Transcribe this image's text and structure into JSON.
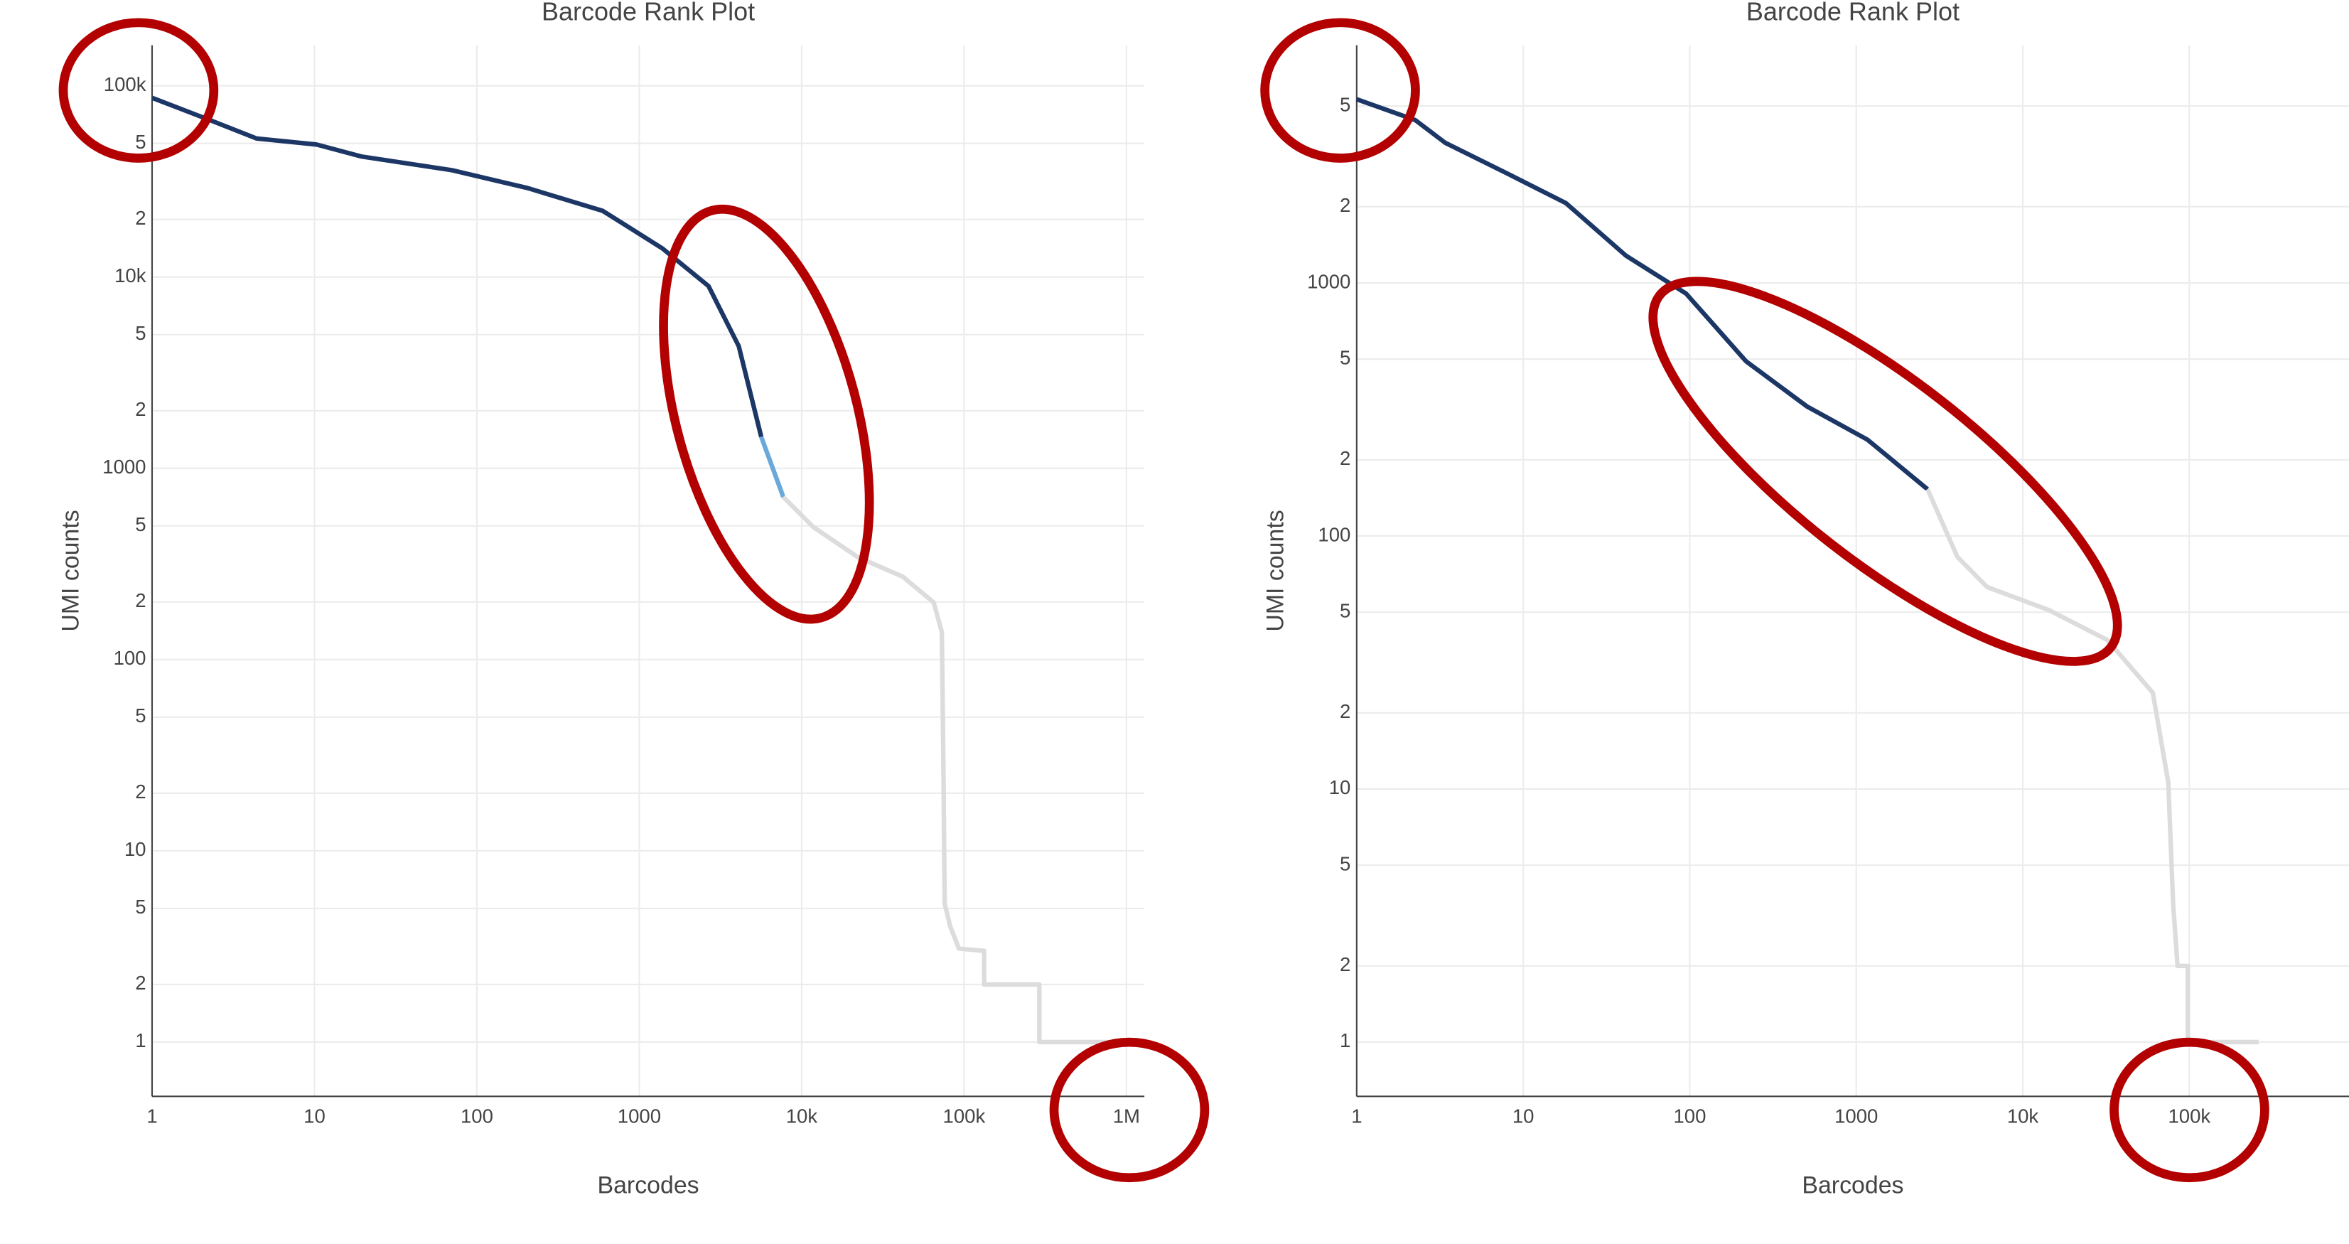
{
  "chart_data": [
    {
      "type": "line",
      "title": "Barcode Rank Plot",
      "x_label": "Barcodes",
      "y_label": "UMI counts",
      "xscale": "log",
      "yscale": "log",
      "grid": true,
      "xlim": [
        1,
        1290000
      ],
      "ylim": [
        0.52,
        163000
      ],
      "xticks": [
        1,
        10,
        100,
        1000,
        {
          "value": 10000,
          "label": "10k"
        },
        {
          "value": 100000,
          "label": "100k"
        },
        {
          "value": 1000000,
          "label": "1M"
        }
      ],
      "yticks": [
        1,
        2,
        5,
        10,
        {
          "value": 20,
          "label": "2"
        },
        {
          "value": 50,
          "label": "5"
        },
        100,
        {
          "value": 200,
          "label": "2"
        },
        {
          "value": 500,
          "label": "5"
        },
        1000,
        {
          "value": 2000,
          "label": "2"
        },
        {
          "value": 5000,
          "label": "5"
        },
        {
          "value": 10000,
          "label": "10k"
        },
        {
          "value": 20000,
          "label": "2"
        },
        {
          "value": 50000,
          "label": "5"
        },
        {
          "value": 100000,
          "label": "100k"
        }
      ],
      "series": [
        {
          "color": "#1c3766",
          "x": [
            1,
            2.3,
            4.4,
            10.3,
            19.4,
            70,
            205,
            595,
            1390,
            2670,
            4100,
            5640
          ],
          "values": [
            86500,
            65900,
            53000,
            49300,
            42700,
            36200,
            29200,
            22200,
            14100,
            8970,
            4350,
            1460
          ]
        },
        {
          "color": "#6aa9da",
          "x": [
            5640,
            7710
          ],
          "values": [
            1460,
            708
          ]
        },
        {
          "color": "#dcdcdc",
          "x": [
            7710,
            11800,
            22200,
            42000,
            65000,
            73000,
            74500,
            76000,
            82000,
            93000,
            133000,
            133000,
            291000,
            291000,
            1050000
          ],
          "values": [
            708,
            493,
            343,
            271,
            199,
            139,
            32.5,
            5.3,
            4.05,
            3.08,
            3,
            2,
            2,
            1,
            1
          ]
        }
      ]
    },
    {
      "type": "line",
      "title": "Barcode Rank Plot",
      "x_label": "Barcodes",
      "y_label": "UMI counts",
      "xscale": "log",
      "yscale": "log",
      "grid": true,
      "xlim": [
        1,
        910000
      ],
      "ylim": [
        0.61,
        8700
      ],
      "xticks": [
        1,
        10,
        100,
        1000,
        {
          "value": 10000,
          "label": "10k"
        },
        {
          "value": 100000,
          "label": "100k"
        }
      ],
      "yticks": [
        1,
        2,
        5,
        10,
        {
          "value": 20,
          "label": "2"
        },
        {
          "value": 50,
          "label": "5"
        },
        100,
        {
          "value": 200,
          "label": "2"
        },
        {
          "value": 500,
          "label": "5"
        },
        1000,
        {
          "value": 2000,
          "label": "2"
        },
        {
          "value": 5000,
          "label": "5"
        }
      ],
      "series": [
        {
          "color": "#1c3766",
          "x": [
            1,
            2.25,
            3.4,
            7.9,
            18,
            41.5,
            95,
            218,
            506,
            1170,
            2680
          ],
          "values": [
            5320,
            4400,
            3580,
            2720,
            2070,
            1280,
            908,
            490,
            325,
            240,
            153
          ]
        },
        {
          "color": "#dcdcdc",
          "x": [
            2680,
            4050,
            6120,
            14300,
            32200,
            60400,
            74800,
            80000,
            85000,
            98000,
            98000,
            261000
          ],
          "values": [
            153,
            82.6,
            62.8,
            51,
            38.8,
            24,
            10.6,
            3.5,
            2,
            2,
            1,
            1
          ]
        }
      ]
    }
  ]
}
